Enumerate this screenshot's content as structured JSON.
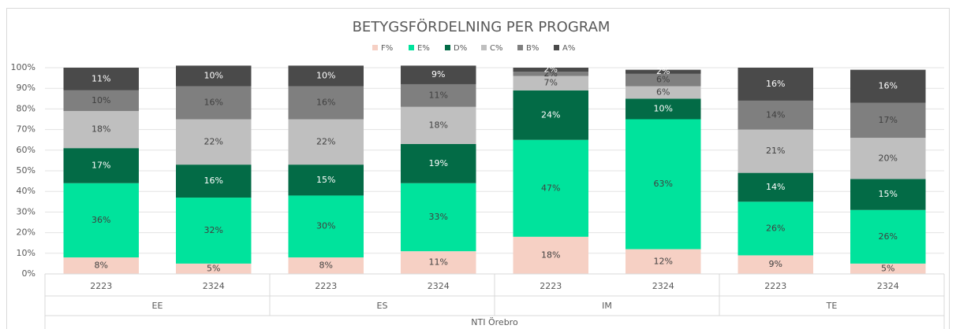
{
  "chart_data": {
    "type": "stacked_bar",
    "title": "BETYGSFÖRDELNING PER PROGRAM",
    "categories": [
      "2223",
      "2324",
      "2223",
      "2324",
      "2223",
      "2324",
      "2223",
      "2324"
    ],
    "groups": [
      "EE",
      "ES",
      "IM",
      "TE"
    ],
    "super_group": "NTI Örebro",
    "series": [
      {
        "name": "F%",
        "color": "#f6d0c4",
        "values": [
          8,
          5,
          8,
          11,
          18,
          12,
          9,
          5
        ],
        "value_labels": [
          "8%",
          "5%",
          "8%",
          "11%",
          "18%",
          "12%",
          "9%",
          "5%"
        ]
      },
      {
        "name": "E%",
        "color": "#00e39c",
        "values": [
          36,
          32,
          30,
          33,
          47,
          63,
          26,
          26
        ],
        "value_labels": [
          "36%",
          "32%",
          "30%",
          "33%",
          "47%",
          "63%",
          "26%",
          "26%"
        ]
      },
      {
        "name": "D%",
        "color": "#036b46",
        "values": [
          17,
          16,
          15,
          19,
          24,
          10,
          14,
          15
        ],
        "value_labels": [
          "17%",
          "16%",
          "15%",
          "19%",
          "24%",
          "10%",
          "14%",
          "15%"
        ]
      },
      {
        "name": "C%",
        "color": "#bfbfbf",
        "values": [
          18,
          22,
          22,
          18,
          7,
          6,
          21,
          20
        ],
        "value_labels": [
          "18%",
          "22%",
          "22%",
          "18%",
          "7%",
          "6%",
          "21%",
          "20%"
        ]
      },
      {
        "name": "B%",
        "color": "#7f7f7f",
        "values": [
          10,
          16,
          16,
          11,
          2,
          6,
          14,
          17
        ],
        "value_labels": [
          "10%",
          "16%",
          "16%",
          "11%",
          "2%",
          "6%",
          "14%",
          "17%"
        ]
      },
      {
        "name": "A%",
        "color": "#4a4a4a",
        "values": [
          11,
          10,
          10,
          9,
          2,
          2,
          16,
          16
        ],
        "value_labels": [
          "11%",
          "10%",
          "10%",
          "9%",
          "2%",
          "2%",
          "16%",
          "16%"
        ]
      }
    ],
    "ylim": [
      0,
      100
    ],
    "yticks": [
      {
        "value": 0,
        "label": "0%"
      },
      {
        "value": 10,
        "label": "10%"
      },
      {
        "value": 20,
        "label": "20%"
      },
      {
        "value": 30,
        "label": "30%"
      },
      {
        "value": 40,
        "label": "40%"
      },
      {
        "value": 50,
        "label": "50%"
      },
      {
        "value": 60,
        "label": "60%"
      },
      {
        "value": 70,
        "label": "70%"
      },
      {
        "value": 80,
        "label": "80%"
      },
      {
        "value": 90,
        "label": "90%"
      },
      {
        "value": 100,
        "label": "100%"
      }
    ],
    "grid": true,
    "legend": "top"
  }
}
